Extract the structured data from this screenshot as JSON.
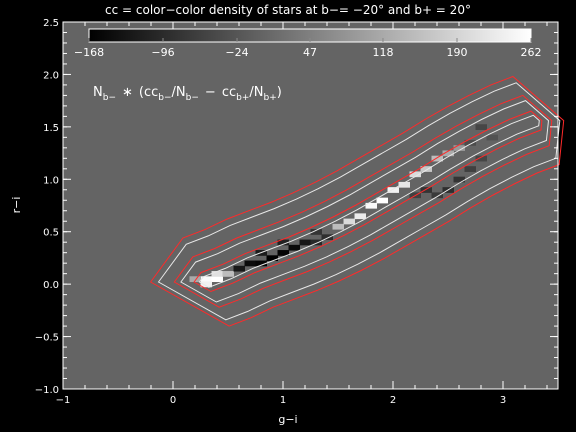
{
  "chart_data": {
    "type": "heatmap",
    "title": "cc = color−color density of stars at b−= −20° and b+ = 20°",
    "xlabel": "g−i",
    "ylabel": "r−i",
    "xlim": [
      -1,
      3.5
    ],
    "ylim": [
      -1,
      2.5
    ],
    "x_ticks": [
      "−1",
      "0",
      "1",
      "2",
      "3"
    ],
    "y_ticks": [
      "−1.0",
      "−0.5",
      "0.0",
      "0.5",
      "1.0",
      "1.5",
      "2.0",
      "2.5"
    ],
    "colorbar": {
      "range": [
        -168,
        262
      ],
      "tick_values": [
        -168,
        -96,
        -24,
        47,
        118,
        190,
        262
      ],
      "tick_labels": [
        "−168",
        "−96",
        "−24",
        "47",
        "118",
        "190",
        "262"
      ]
    },
    "annotation": {
      "prefix": "N",
      "prefix_sub": "b−",
      "op": "∗",
      "num1": "cc",
      "num1_sub": "b−",
      "den1": "/N",
      "den1_sub": "b−",
      "minus": "−",
      "num2": "cc",
      "num2_sub": "b+",
      "den2": "/N",
      "den2_sub": "b+"
    },
    "locus": [
      [
        0.3,
        0.02
      ],
      [
        0.5,
        0.1
      ],
      [
        0.7,
        0.2
      ],
      [
        0.9,
        0.28
      ],
      [
        1.1,
        0.36
      ],
      [
        1.3,
        0.45
      ],
      [
        1.5,
        0.55
      ],
      [
        1.7,
        0.66
      ],
      [
        1.9,
        0.78
      ],
      [
        2.1,
        0.9
      ],
      [
        2.3,
        1.02
      ],
      [
        2.5,
        1.15
      ],
      [
        2.7,
        1.27
      ],
      [
        2.9,
        1.38
      ],
      [
        3.1,
        1.48
      ],
      [
        3.3,
        1.56
      ]
    ],
    "residual_cells": [
      {
        "x": 0.3,
        "y": 0.05,
        "v": 255
      },
      {
        "x": 0.4,
        "y": 0.05,
        "v": 262
      },
      {
        "x": 0.3,
        "y": 0.0,
        "v": 240
      },
      {
        "x": 0.4,
        "y": 0.1,
        "v": 210
      },
      {
        "x": 0.5,
        "y": 0.1,
        "v": 150
      },
      {
        "x": 0.2,
        "y": 0.05,
        "v": 120
      },
      {
        "x": 0.6,
        "y": 0.15,
        "v": -130
      },
      {
        "x": 0.7,
        "y": 0.2,
        "v": -150
      },
      {
        "x": 0.8,
        "y": 0.2,
        "v": -160
      },
      {
        "x": 0.9,
        "y": 0.25,
        "v": -168
      },
      {
        "x": 1.0,
        "y": 0.3,
        "v": -160
      },
      {
        "x": 1.1,
        "y": 0.35,
        "v": -150
      },
      {
        "x": 1.2,
        "y": 0.4,
        "v": -130
      },
      {
        "x": 0.8,
        "y": 0.3,
        "v": -120
      },
      {
        "x": 1.0,
        "y": 0.4,
        "v": -110
      },
      {
        "x": 1.3,
        "y": 0.4,
        "v": -100
      },
      {
        "x": 1.4,
        "y": 0.45,
        "v": -90
      },
      {
        "x": 1.3,
        "y": 0.5,
        "v": -80
      },
      {
        "x": 1.5,
        "y": 0.55,
        "v": 150
      },
      {
        "x": 1.6,
        "y": 0.6,
        "v": 200
      },
      {
        "x": 1.7,
        "y": 0.65,
        "v": 230
      },
      {
        "x": 1.8,
        "y": 0.75,
        "v": 250
      },
      {
        "x": 1.9,
        "y": 0.8,
        "v": 262
      },
      {
        "x": 2.0,
        "y": 0.9,
        "v": 240
      },
      {
        "x": 2.1,
        "y": 0.95,
        "v": 220
      },
      {
        "x": 2.2,
        "y": 1.05,
        "v": 200
      },
      {
        "x": 2.3,
        "y": 1.1,
        "v": 170
      },
      {
        "x": 2.4,
        "y": 1.2,
        "v": 150
      },
      {
        "x": 2.5,
        "y": 1.25,
        "v": 120
      },
      {
        "x": 2.6,
        "y": 1.3,
        "v": 90
      },
      {
        "x": 2.2,
        "y": 0.85,
        "v": -60
      },
      {
        "x": 2.3,
        "y": 0.9,
        "v": -80
      },
      {
        "x": 2.4,
        "y": 0.85,
        "v": -70
      },
      {
        "x": 2.5,
        "y": 0.9,
        "v": -90
      },
      {
        "x": 2.6,
        "y": 1.0,
        "v": -80
      },
      {
        "x": 2.7,
        "y": 1.1,
        "v": -60
      },
      {
        "x": 2.8,
        "y": 1.2,
        "v": -50
      },
      {
        "x": 2.7,
        "y": 1.35,
        "v": -40
      },
      {
        "x": 2.9,
        "y": 1.4,
        "v": -30
      },
      {
        "x": 2.8,
        "y": 1.5,
        "v": -50
      }
    ]
  }
}
